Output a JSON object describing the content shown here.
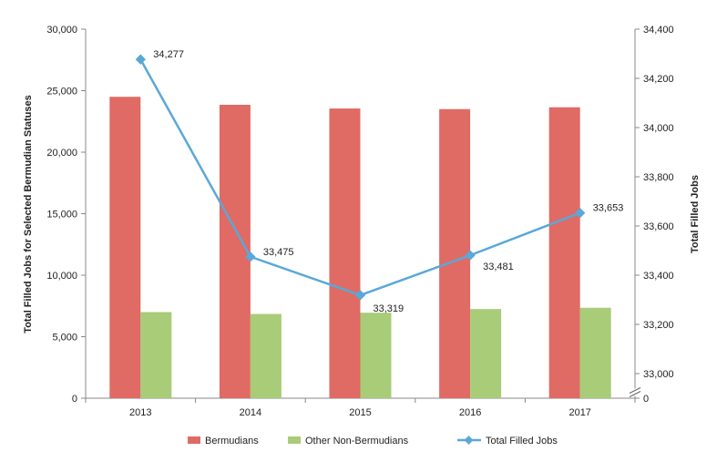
{
  "chart_data": {
    "type": "bar",
    "categories": [
      "2013",
      "2014",
      "2015",
      "2016",
      "2017"
    ],
    "series": [
      {
        "name": "Bermudians",
        "type": "bar",
        "axis": "left",
        "color": "#e06a64",
        "values": [
          24500,
          23850,
          23550,
          23500,
          23650
        ]
      },
      {
        "name": "Other Non-Bermudians",
        "type": "bar",
        "axis": "left",
        "color": "#a8cc78",
        "values": [
          7000,
          6850,
          6950,
          7250,
          7350
        ]
      },
      {
        "name": "Total Filled Jobs",
        "type": "line",
        "axis": "right",
        "color": "#5aa8d8",
        "values": [
          34277,
          33475,
          33319,
          33481,
          33653
        ]
      }
    ],
    "data_labels": [
      "34,277",
      "33,475",
      "33,319",
      "33,481",
      "33,653"
    ],
    "ylabel": "Total Filled Jobs for Selected  Bermudian Statuses",
    "y2label": "Total Filled Jobs",
    "ylim": [
      0,
      30000
    ],
    "y_ticks": [
      "0",
      "5,000",
      "10,000",
      "15,000",
      "20,000",
      "25,000",
      "30,000"
    ],
    "y2lim": [
      32900,
      34400
    ],
    "y2_ticks": [
      "0",
      "33,000",
      "33,200",
      "33,400",
      "33,600",
      "33,800",
      "34,000",
      "34,200",
      "34,400"
    ],
    "y2_axis_break": true,
    "grid": false,
    "legend": "bottom"
  }
}
